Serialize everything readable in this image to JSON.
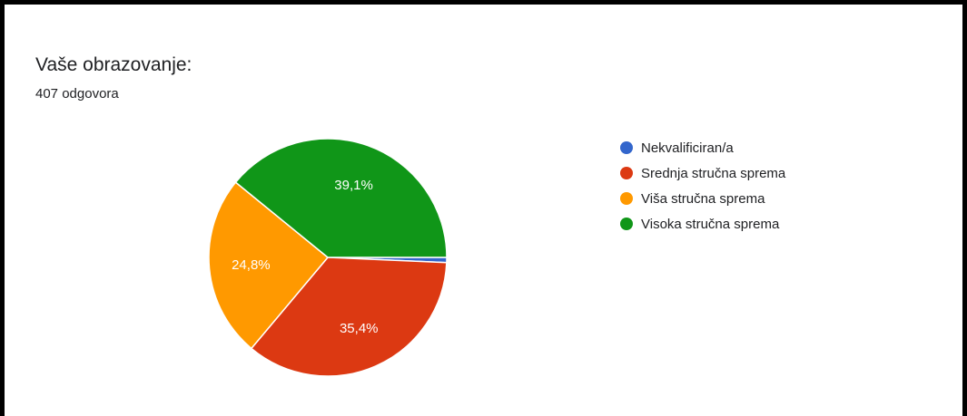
{
  "header": {
    "title": "Vaše obrazovanje:",
    "subtitle": "407 odgovora"
  },
  "chart_data": {
    "type": "pie",
    "title": "Vaše obrazovanje:",
    "subtitle": "407 odgovora",
    "categories": [
      "Nekvalificiran/a",
      "Srednja stručna sprema",
      "Viša stručna sprema",
      "Visoka stručna sprema"
    ],
    "values": [
      0.7,
      35.4,
      24.8,
      39.1
    ],
    "data_labels": [
      "",
      "35,4%",
      "24,8%",
      "39,1%"
    ],
    "colors": [
      "#3366cc",
      "#dc3912",
      "#ff9900",
      "#109618"
    ],
    "legend_position": "right"
  }
}
